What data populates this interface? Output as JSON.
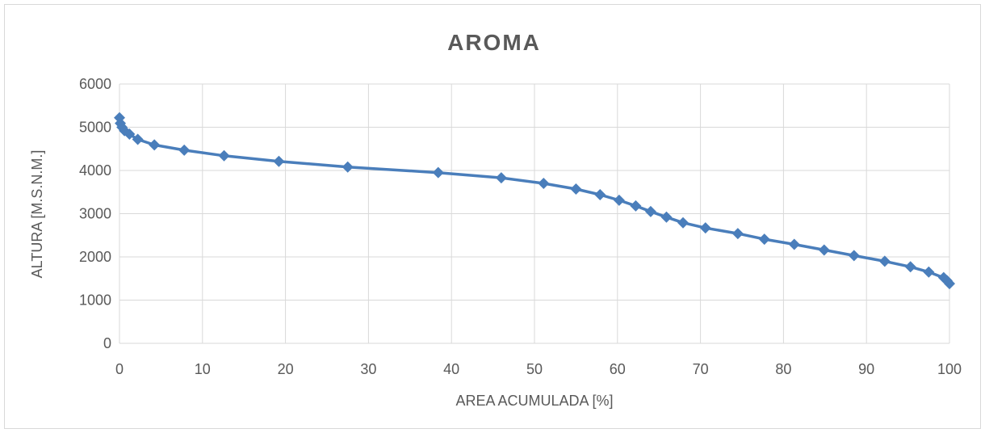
{
  "chart_data": {
    "type": "line",
    "title": "AROMA",
    "xlabel": "AREA ACUMULADA [%]",
    "ylabel": "ALTURA [M.S.N.M.]",
    "xlim": [
      0,
      100
    ],
    "ylim": [
      0,
      6000
    ],
    "x_ticks": [
      0,
      10,
      20,
      30,
      40,
      50,
      60,
      70,
      80,
      90,
      100
    ],
    "y_ticks": [
      0,
      1000,
      2000,
      3000,
      4000,
      5000,
      6000
    ],
    "grid": true,
    "legend": "none",
    "marker": "diamond",
    "color": "#4a7ebb",
    "series": [
      {
        "x": [
          0.0,
          0.1,
          0.3,
          0.6,
          1.2,
          2.2,
          4.2,
          7.8,
          12.6,
          19.2,
          27.5,
          38.4,
          46.0,
          51.1,
          55.0,
          57.9,
          60.2,
          62.2,
          64.0,
          65.9,
          67.9,
          70.6,
          74.5,
          77.7,
          81.3,
          84.9,
          88.5,
          92.2,
          95.3,
          97.5,
          99.3,
          99.7,
          100.0
        ],
        "y": [
          5220,
          5090,
          5000,
          4920,
          4840,
          4720,
          4590,
          4470,
          4340,
          4210,
          4080,
          3950,
          3830,
          3700,
          3570,
          3440,
          3310,
          3180,
          3050,
          2920,
          2790,
          2670,
          2540,
          2410,
          2290,
          2160,
          2030,
          1900,
          1770,
          1650,
          1520,
          1450,
          1380
        ]
      }
    ]
  }
}
